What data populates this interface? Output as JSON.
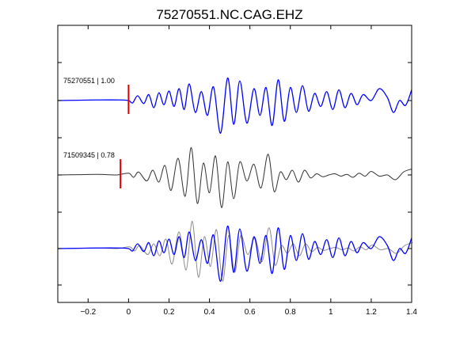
{
  "chart_data": {
    "type": "line",
    "title": "75270551.NC.CAG.EHZ",
    "xlabel": "",
    "ylabel": "",
    "xlim": [
      -0.35,
      1.4
    ],
    "x_ticks": [
      -0.2,
      0,
      0.2,
      0.4,
      0.6,
      0.8,
      1,
      1.2,
      1.4
    ],
    "x_tick_labels": [
      "−0.2",
      "0",
      "0.2",
      "0.4",
      "0.6",
      "0.8",
      "1",
      "1.2",
      "1.4"
    ],
    "grid": false,
    "colors": {
      "blue": "#0000ff",
      "dark": "#303030",
      "gray": "#8c8c8c",
      "pick": "#dd0000"
    },
    "traces": [
      {
        "label": "75270551 | 1.00",
        "color": "#0000ff",
        "pick_time": 0.0,
        "x": [
          -0.35,
          -0.25,
          -0.15,
          -0.05,
          0.0,
          0.02,
          0.045,
          0.075,
          0.1,
          0.125,
          0.15,
          0.175,
          0.2,
          0.225,
          0.25,
          0.275,
          0.3,
          0.33,
          0.36,
          0.39,
          0.42,
          0.455,
          0.49,
          0.52,
          0.55,
          0.585,
          0.62,
          0.65,
          0.68,
          0.71,
          0.74,
          0.77,
          0.8,
          0.83,
          0.86,
          0.89,
          0.92,
          0.95,
          0.98,
          1.01,
          1.04,
          1.07,
          1.1,
          1.13,
          1.16,
          1.2,
          1.24,
          1.28,
          1.31,
          1.34,
          1.37,
          1.4
        ],
        "y": [
          0,
          0.005,
          0.01,
          0.01,
          0.0,
          -0.04,
          0.08,
          -0.05,
          0.1,
          -0.12,
          0.13,
          -0.07,
          0.16,
          -0.1,
          0.2,
          -0.15,
          0.28,
          -0.2,
          0.15,
          -0.25,
          0.23,
          -0.55,
          0.38,
          -0.4,
          0.33,
          -0.38,
          0.2,
          -0.25,
          0.22,
          -0.42,
          0.35,
          -0.35,
          0.22,
          -0.2,
          0.25,
          -0.18,
          0.12,
          -0.1,
          0.15,
          -0.15,
          0.18,
          -0.12,
          0.12,
          -0.07,
          0.1,
          0.0,
          0.2,
          0.05,
          -0.2,
          0.0,
          -0.08,
          0.18
        ]
      },
      {
        "label": "71509345 | 0.78",
        "color": "#303030",
        "pick_time": -0.04,
        "x": [
          -0.35,
          -0.25,
          -0.15,
          -0.06,
          0.0,
          0.025,
          0.05,
          0.09,
          0.12,
          0.15,
          0.18,
          0.21,
          0.245,
          0.28,
          0.31,
          0.34,
          0.37,
          0.4,
          0.43,
          0.46,
          0.49,
          0.52,
          0.55,
          0.585,
          0.62,
          0.655,
          0.69,
          0.72,
          0.75,
          0.78,
          0.81,
          0.84,
          0.87,
          0.9,
          0.93,
          0.96,
          0.99,
          1.02,
          1.05,
          1.08,
          1.11,
          1.14,
          1.17,
          1.2,
          1.24,
          1.28,
          1.32,
          1.36,
          1.4
        ],
        "y": [
          0,
          0.005,
          0.01,
          0.0,
          0.03,
          -0.04,
          0.05,
          -0.1,
          0.08,
          -0.12,
          0.16,
          -0.26,
          0.28,
          -0.36,
          0.46,
          -0.48,
          0.2,
          -0.3,
          0.32,
          -0.55,
          0.22,
          -0.4,
          0.22,
          -0.1,
          0.18,
          -0.22,
          0.35,
          -0.28,
          0.05,
          -0.08,
          0.08,
          -0.12,
          0.08,
          -0.05,
          0.02,
          -0.03,
          0.0,
          0.02,
          -0.02,
          0.01,
          -0.04,
          0.03,
          -0.02,
          0.06,
          -0.02,
          0.0,
          -0.08,
          0.05,
          0.1
        ]
      }
    ]
  }
}
